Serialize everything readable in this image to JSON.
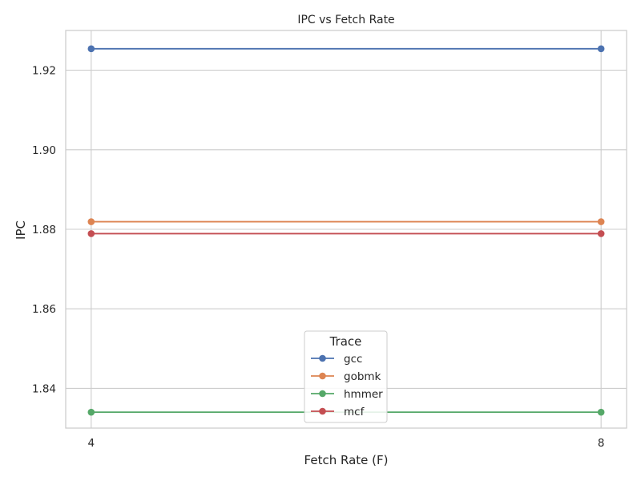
{
  "chart_data": {
    "type": "line",
    "title": "IPC vs Fetch Rate",
    "xlabel": "Fetch Rate (F)",
    "ylabel": "IPC",
    "x": [
      4,
      8
    ],
    "x_tick_labels": [
      "4",
      "8"
    ],
    "xlim": [
      3.8,
      8.2
    ],
    "ylim": [
      1.83,
      1.93
    ],
    "y_ticks": [
      1.84,
      1.86,
      1.88,
      1.9,
      1.92
    ],
    "y_tick_labels": [
      "1.84",
      "1.86",
      "1.88",
      "1.90",
      "1.92"
    ],
    "grid": true,
    "legend": {
      "title": "Trace",
      "placement": "lower-center"
    },
    "series": [
      {
        "name": "gcc",
        "values": [
          1.9254,
          1.9254
        ],
        "color": "#4c72b0"
      },
      {
        "name": "gobmk",
        "values": [
          1.8819,
          1.8819
        ],
        "color": "#dd8452"
      },
      {
        "name": "hmmer",
        "values": [
          1.834,
          1.834
        ],
        "color": "#55a868"
      },
      {
        "name": "mcf",
        "values": [
          1.8789,
          1.8789
        ],
        "color": "#c44e52"
      }
    ]
  }
}
